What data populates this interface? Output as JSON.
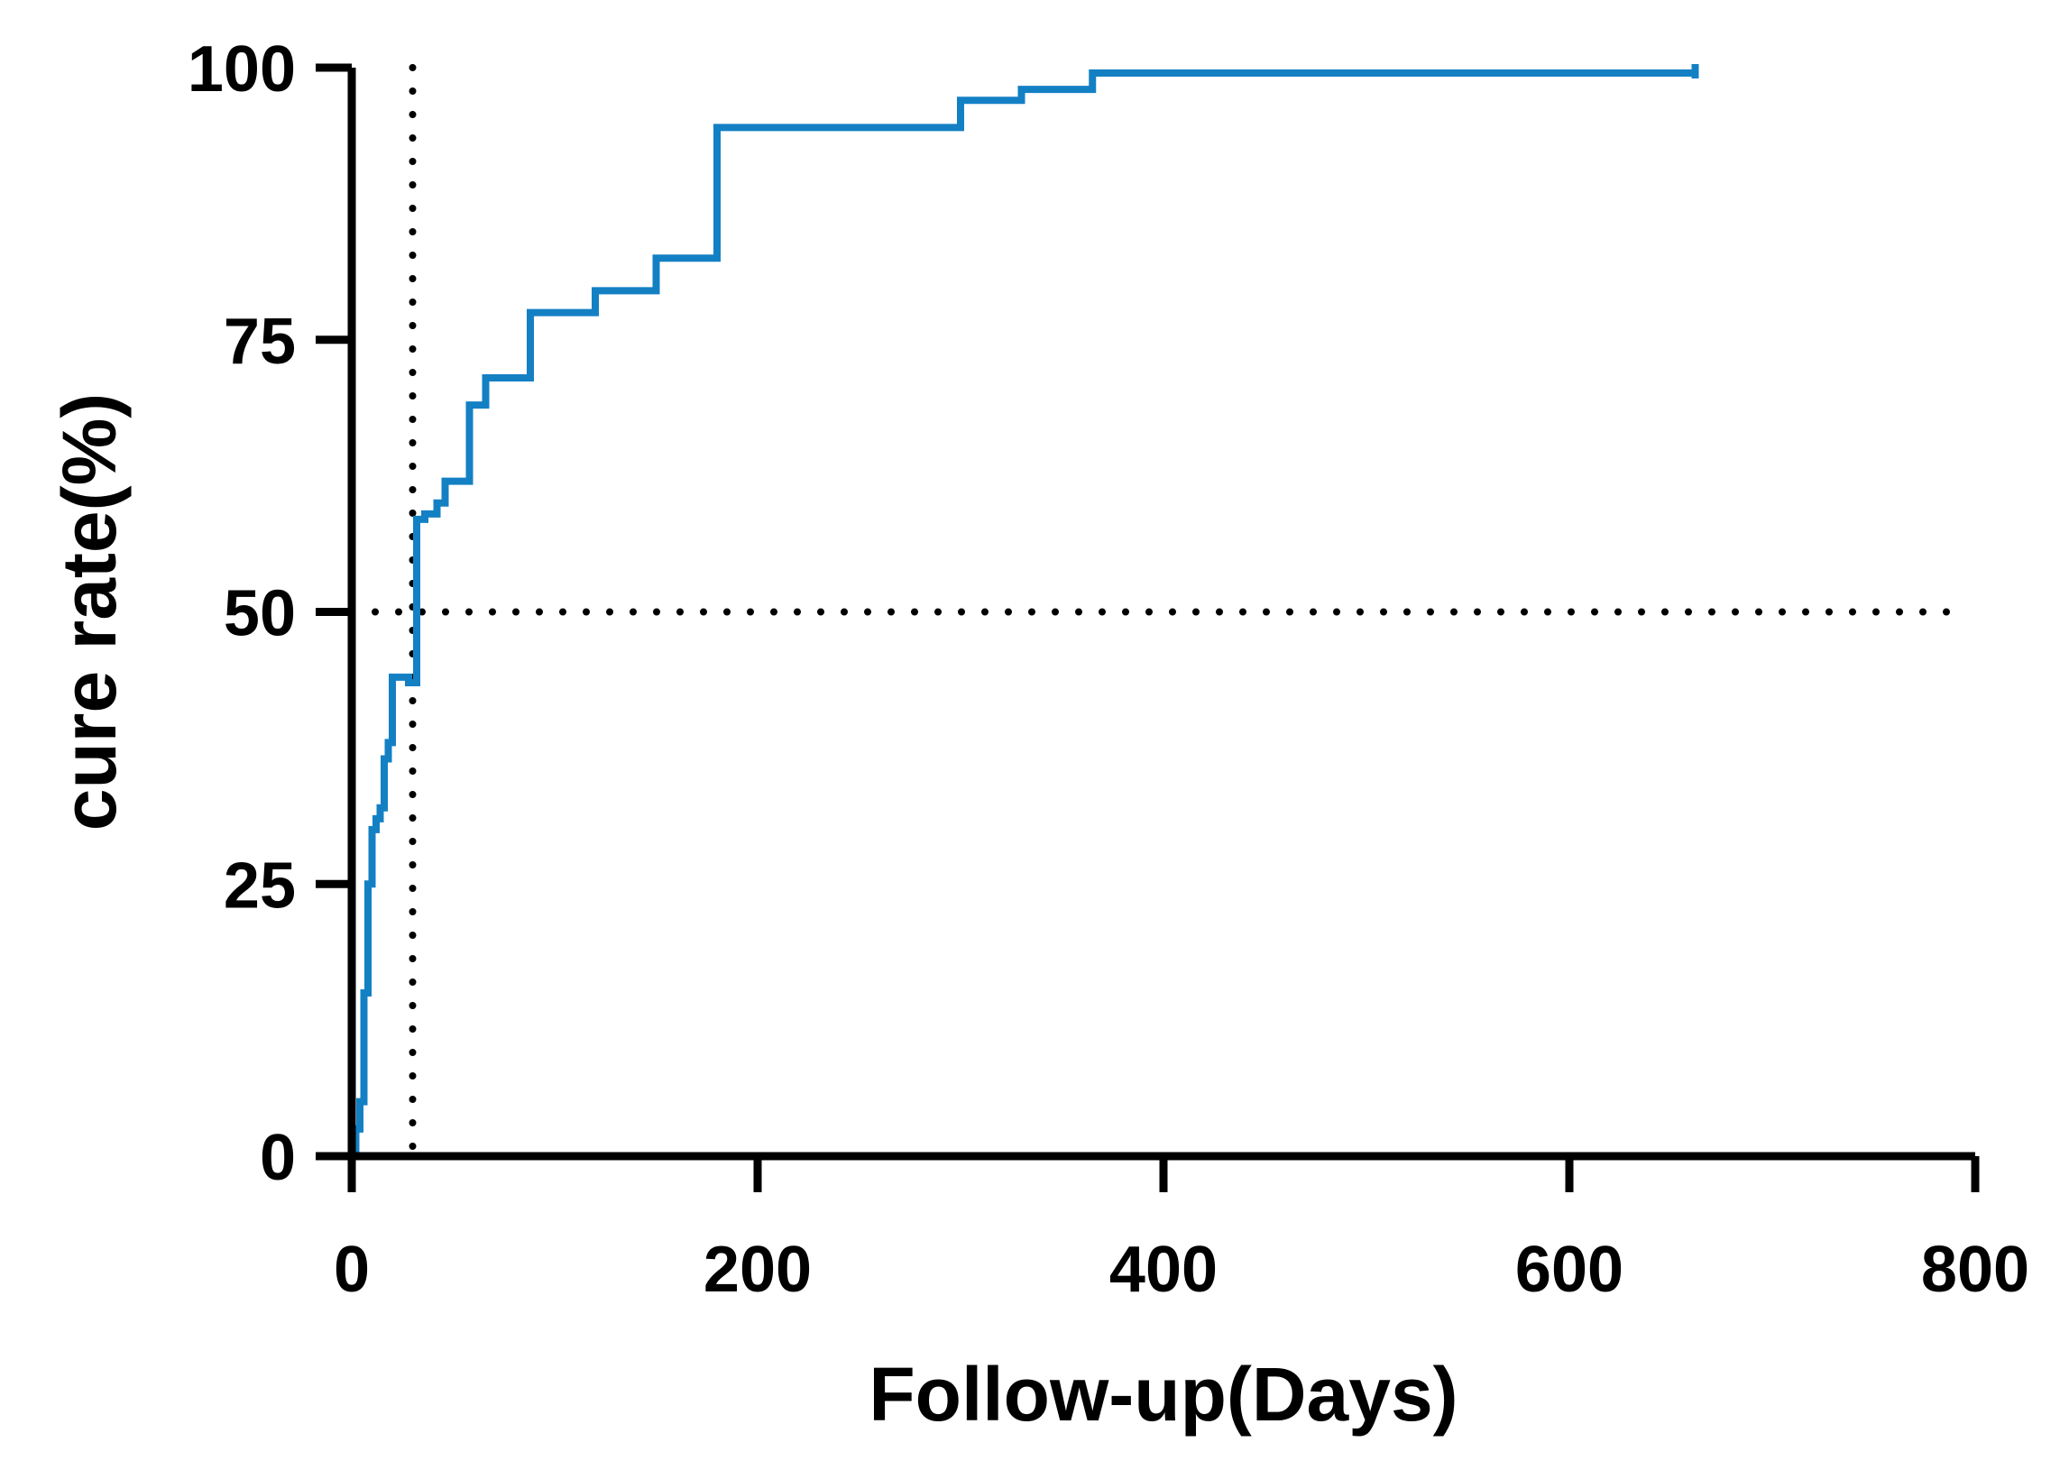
{
  "chart_data": {
    "type": "line",
    "step": true,
    "title": "",
    "xlabel": "Follow-up(Days)",
    "ylabel": "cure rate(%)",
    "xlim": [
      0,
      800
    ],
    "ylim": [
      0,
      100
    ],
    "xticks": [
      0,
      200,
      400,
      600,
      800
    ],
    "yticks": [
      0,
      25,
      50,
      75,
      100
    ],
    "xtick_labels": [
      "0",
      "200",
      "400",
      "600",
      "800"
    ],
    "ytick_labels": [
      "0",
      "25",
      "50",
      "75",
      "100"
    ],
    "grid": false,
    "legend": "none",
    "series": [
      {
        "color": "#1480C4",
        "x": [
          0,
          2,
          4,
          6,
          8,
          10,
          12,
          14,
          16,
          18,
          20,
          22,
          24,
          28,
          32,
          36,
          42,
          46,
          58,
          66,
          74,
          88,
          100,
          120,
          150,
          180,
          200,
          300,
          330,
          365,
          400,
          500,
          600,
          662
        ],
        "y": [
          0,
          2.5,
          5,
          15,
          25,
          30,
          31,
          32,
          36.5,
          38,
          44,
          44,
          44,
          43.5,
          58.5,
          59,
          60,
          62,
          69,
          71.5,
          71.5,
          77.5,
          77.5,
          79.5,
          82.5,
          94.5,
          94.5,
          97,
          98,
          99.5,
          99.5,
          99.5,
          99.5,
          99.5
        ]
      }
    ],
    "reference_lines": [
      {
        "orientation": "horizontal",
        "value": 50,
        "style": "dotted",
        "color": "#000000"
      },
      {
        "orientation": "vertical",
        "value": 30,
        "style": "dotted",
        "color": "#000000"
      }
    ]
  }
}
